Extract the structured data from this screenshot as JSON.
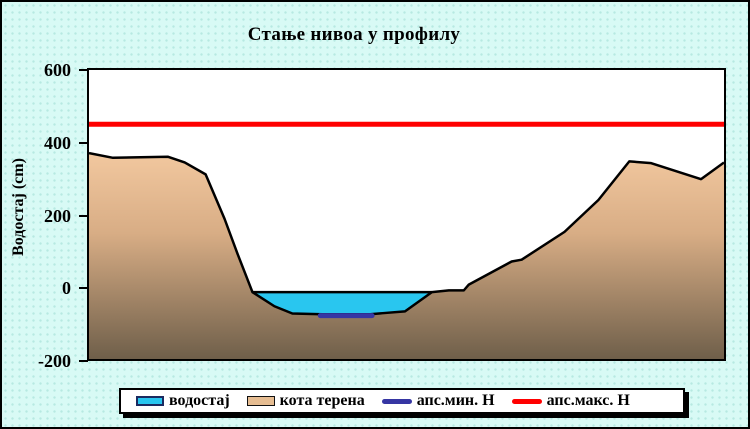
{
  "title": "Стање нивоа у профилу",
  "y_axis": {
    "label": "Водостај (cm)"
  },
  "legend": {
    "items": [
      {
        "label": "водостај",
        "swatch": "water-box",
        "color": "#29C6EF"
      },
      {
        "label": "кота терена",
        "swatch": "terrain-box",
        "color": "#E6BD92"
      },
      {
        "label": "апс.мин. Н",
        "swatch": "line",
        "color": "#3636A3"
      },
      {
        "label": "апс.макс. Н",
        "swatch": "line",
        "color": "#FF0000"
      }
    ]
  },
  "colors": {
    "background": "#D8FAF5",
    "plot_background": "#FFFFFF",
    "water": "#29C6EF",
    "terrain_top": "#F3C9A0",
    "terrain_mid": "#D8AD85",
    "terrain_bottom": "#6F5F4A",
    "abs_min_line": "#3636A3",
    "abs_max_line": "#FF0000",
    "outline": "#000000"
  },
  "chart_data": {
    "type": "area",
    "title": "Стање нивоа у профилу",
    "xlabel": "",
    "ylabel": "Водостај (cm)",
    "ylim": [
      -200,
      600
    ],
    "yticks": [
      600,
      400,
      200,
      0,
      -200
    ],
    "grid": false,
    "legend_position": "bottom",
    "x_axis_note": "profile station, unlabeled (pixel units 0-637 across plot)",
    "plot_width_units": 637,
    "series": [
      {
        "name": "кота терена",
        "type": "area",
        "role": "terrain cross-section profile",
        "points_x": [
          0,
          24,
          79,
          96,
          117,
          136,
          149,
          164,
          186,
          204,
          234,
          282,
          317,
          344,
          361,
          376,
          381,
          424,
          434,
          477,
          511,
          542,
          564,
          614,
          637
        ],
        "points_elev_cm": [
          370,
          357,
          360,
          344,
          311,
          188,
          91,
          -15,
          -54,
          -74,
          -76,
          -76,
          -68,
          -15,
          -10,
          -10,
          6,
          70,
          75,
          152,
          240,
          347,
          342,
          298,
          344
        ]
      },
      {
        "name": "водостај",
        "type": "area",
        "role": "current water level in channel",
        "level_cm": -15,
        "x_span": [
          164,
          344
        ]
      },
      {
        "name": "апс.мин. Н",
        "type": "line",
        "role": "absolute minimum stage",
        "value_cm": -80,
        "x_span": [
          232,
          284
        ]
      },
      {
        "name": "апс.макс. Н",
        "type": "line",
        "role": "absolute maximum stage",
        "value_cm": 450,
        "x_span": [
          0,
          637
        ]
      }
    ]
  }
}
